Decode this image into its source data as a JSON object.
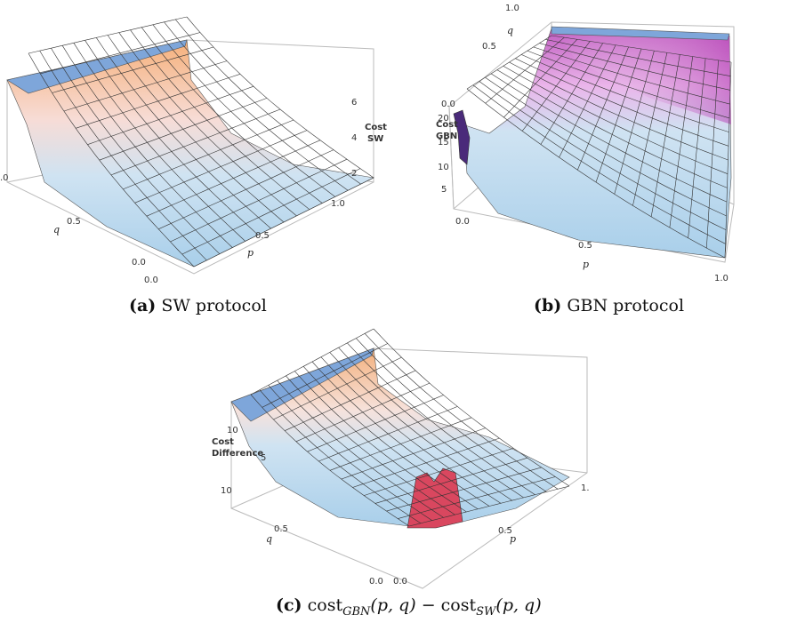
{
  "chart_data": [
    {
      "id": "a",
      "type": "surface3d",
      "caption_tag": "(a)",
      "caption_text": "SW protocol",
      "z_label_lines": [
        "Cost",
        "SW"
      ],
      "x_label": "p",
      "y_label": "q",
      "x_ticks": [
        "0.0",
        "0.5",
        "1.0"
      ],
      "y_ticks": [
        ".0",
        "0.5",
        "0.0"
      ],
      "z_ticks": [
        "6",
        "4",
        "2"
      ]
    },
    {
      "id": "b",
      "type": "surface3d",
      "caption_tag": "(b)",
      "caption_text": "GBN protocol",
      "z_label_lines": [
        "Cost",
        "GBN"
      ],
      "x_label": "p",
      "y_label": "q",
      "x_ticks": [
        "0.0",
        "0.5",
        "1.0"
      ],
      "y_ticks": [
        "1.0",
        "0.5",
        "0.0"
      ],
      "z_ticks": [
        "20",
        "15",
        "10",
        "5"
      ]
    },
    {
      "id": "c",
      "type": "surface3d",
      "caption_tag": "(c)",
      "z_label_lines": [
        "Cost",
        "Difference"
      ],
      "x_label": "p",
      "y_label": "q",
      "x_ticks": [
        "0.0",
        "0.5",
        "1."
      ],
      "y_ticks": [
        "10",
        "0.5",
        "0.0"
      ],
      "z_ticks": [
        "10",
        "5"
      ]
    }
  ],
  "caption_c": {
    "cost": "cost",
    "gbn_sub": "GBN",
    "sw_sub": "SW",
    "args": "(p, q)",
    "minus": "−"
  },
  "colors": {
    "blue_surface": "#bcd9ee",
    "orange_edge": "#f2b98b",
    "magenta": "#c867c4",
    "dark_purple": "#4a2a7a",
    "red_bump": "#d9475f",
    "top_face": "#7ea6da"
  }
}
